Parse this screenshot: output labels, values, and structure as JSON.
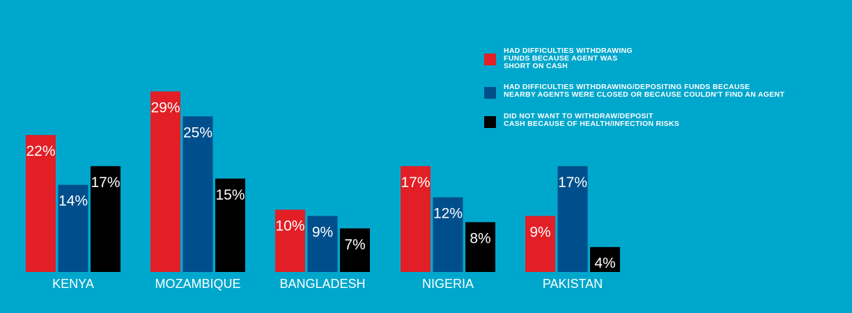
{
  "chart_data": {
    "type": "bar",
    "categories": [
      "KENYA",
      "MOZAMBIQUE",
      "BANGLADESH",
      "NIGERIA",
      "PAKISTAN"
    ],
    "series": [
      {
        "name": "HAD DIFFICULTIES WITHDRAWING\nFUNDS  BECAUSE AGENT WAS\nSHORT ON CASH",
        "color": "#e21f26",
        "values": [
          22,
          29,
          10,
          17,
          9
        ],
        "labels": [
          "22%",
          "29%",
          "10%",
          "17%",
          "9%"
        ]
      },
      {
        "name": "HAD DIFFICULTIES WITHDRAWING/DEPOSITING FUNDS BECAUSE\nNEARBY AGENTS WERE CLOSED OR BECAUSE COULDN'T FIND AN AGENT",
        "color": "#004f8c",
        "values": [
          14,
          25,
          9,
          12,
          17
        ],
        "labels": [
          "14%",
          "25%",
          "9%",
          "12%",
          "17%"
        ]
      },
      {
        "name": "DID NOT WANT TO WITHDRAW/DEPOSIT\nCASH BECAUSE OF HEALTH/INFECTION RISKS",
        "color": "#000000",
        "values": [
          17,
          15,
          7,
          8,
          4
        ],
        "labels": [
          "17%",
          "15%",
          "7%",
          "8%",
          "4%"
        ]
      }
    ],
    "ylim": [
      0,
      30
    ],
    "grid": false,
    "legend_position": "top-right",
    "title": "",
    "xlabel": "",
    "ylabel": ""
  }
}
